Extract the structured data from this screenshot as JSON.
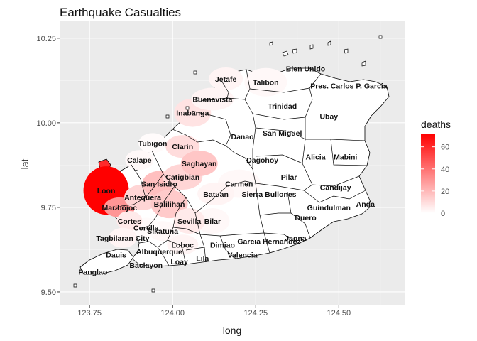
{
  "title": "Earthquake Casualties",
  "axes": {
    "xlabel": "long",
    "ylabel": "lat",
    "xlim": [
      123.66,
      124.7
    ],
    "ylim": [
      9.46,
      10.3
    ],
    "xticks": [
      {
        "v": 123.75,
        "label": "123.75"
      },
      {
        "v": 124.0,
        "label": "124.00"
      },
      {
        "v": 124.25,
        "label": "124.25"
      },
      {
        "v": 124.5,
        "label": "124.50"
      }
    ],
    "yticks": [
      {
        "v": 9.5,
        "label": "9.50"
      },
      {
        "v": 9.75,
        "label": "9.75"
      },
      {
        "v": 10.0,
        "label": "10.00"
      },
      {
        "v": 10.25,
        "label": "10.25"
      }
    ]
  },
  "legend": {
    "title": "deaths",
    "range": [
      0,
      72
    ],
    "ticks": [
      {
        "v": 0,
        "label": "0"
      },
      {
        "v": 20,
        "label": "20"
      },
      {
        "v": 40,
        "label": "40"
      },
      {
        "v": 60,
        "label": "60"
      }
    ],
    "low_color": "#ffffff",
    "high_color": "#ff0000"
  },
  "colors": {
    "panel": "#ebebeb",
    "grid_major": "#ffffff",
    "grid_minor": "#f5f5f5",
    "border": "#000000"
  },
  "chart_data": {
    "type": "choropleth",
    "variable": "deaths",
    "regions": [
      {
        "name": "Loon",
        "deaths": 72,
        "lon": 123.8,
        "lat": 9.8
      },
      {
        "name": "Maribojoc",
        "deaths": 30,
        "lon": 123.84,
        "lat": 9.75
      },
      {
        "name": "Calape",
        "deaths": 2,
        "lon": 123.9,
        "lat": 9.89
      },
      {
        "name": "Antequera",
        "deaths": 12,
        "lon": 123.91,
        "lat": 9.78
      },
      {
        "name": "San Isidro",
        "deaths": 18,
        "lon": 123.96,
        "lat": 9.82
      },
      {
        "name": "Catigbian",
        "deaths": 12,
        "lon": 124.03,
        "lat": 9.84
      },
      {
        "name": "Balilihan",
        "deaths": 15,
        "lon": 123.99,
        "lat": 9.76
      },
      {
        "name": "Tubigon",
        "deaths": 1,
        "lon": 123.94,
        "lat": 9.94
      },
      {
        "name": "Clarin",
        "deaths": 10,
        "lon": 124.03,
        "lat": 9.93
      },
      {
        "name": "Sagbayan",
        "deaths": 16,
        "lon": 124.08,
        "lat": 9.88
      },
      {
        "name": "Inabanga",
        "deaths": 8,
        "lon": 124.06,
        "lat": 10.03
      },
      {
        "name": "Buenavista",
        "deaths": 3,
        "lon": 124.12,
        "lat": 10.07
      },
      {
        "name": "Jetafe",
        "deaths": 3,
        "lon": 124.16,
        "lat": 10.13
      },
      {
        "name": "Talibon",
        "deaths": 2,
        "lon": 124.28,
        "lat": 10.12
      },
      {
        "name": "Bien Unido",
        "deaths": 0,
        "lon": 124.4,
        "lat": 10.16
      },
      {
        "name": "Trinidad",
        "deaths": 0,
        "lon": 124.33,
        "lat": 10.05
      },
      {
        "name": "Ubay",
        "deaths": 0,
        "lon": 124.47,
        "lat": 10.02
      },
      {
        "name": "Pres. Carlos P. Garcia",
        "deaths": 0,
        "lon": 124.53,
        "lat": 10.11
      },
      {
        "name": "Danao",
        "deaths": 0,
        "lon": 124.21,
        "lat": 9.96
      },
      {
        "name": "San Miguel",
        "deaths": 0,
        "lon": 124.33,
        "lat": 9.97
      },
      {
        "name": "Dagohoy",
        "deaths": 0,
        "lon": 124.27,
        "lat": 9.89
      },
      {
        "name": "Carmen",
        "deaths": 2,
        "lon": 124.2,
        "lat": 9.82
      },
      {
        "name": "Pilar",
        "deaths": 0,
        "lon": 124.35,
        "lat": 9.84
      },
      {
        "name": "Alicia",
        "deaths": 0,
        "lon": 124.43,
        "lat": 9.9
      },
      {
        "name": "Mabini",
        "deaths": 0,
        "lon": 124.52,
        "lat": 9.9
      },
      {
        "name": "Candijay",
        "deaths": 0,
        "lon": 124.49,
        "lat": 9.81
      },
      {
        "name": "Anda",
        "deaths": 0,
        "lon": 124.58,
        "lat": 9.76
      },
      {
        "name": "Guindulman",
        "deaths": 0,
        "lon": 124.47,
        "lat": 9.75
      },
      {
        "name": "Duero",
        "deaths": 0,
        "lon": 124.4,
        "lat": 9.72
      },
      {
        "name": "Jagna",
        "deaths": 0,
        "lon": 124.37,
        "lat": 9.66
      },
      {
        "name": "Sierra Bullones",
        "deaths": 0,
        "lon": 124.29,
        "lat": 9.79
      },
      {
        "name": "Batuan",
        "deaths": 3,
        "lon": 124.13,
        "lat": 9.79
      },
      {
        "name": "Bilar",
        "deaths": 2,
        "lon": 124.12,
        "lat": 9.71
      },
      {
        "name": "Sevilla",
        "deaths": 6,
        "lon": 124.05,
        "lat": 9.71
      },
      {
        "name": "Garcia Hernandez",
        "deaths": 0,
        "lon": 124.29,
        "lat": 9.65
      },
      {
        "name": "Dimiao",
        "deaths": 0,
        "lon": 124.15,
        "lat": 9.64
      },
      {
        "name": "Valencia",
        "deaths": 0,
        "lon": 124.21,
        "lat": 9.61
      },
      {
        "name": "Lila",
        "deaths": 0,
        "lon": 124.09,
        "lat": 9.6
      },
      {
        "name": "Loboc",
        "deaths": 3,
        "lon": 124.03,
        "lat": 9.64
      },
      {
        "name": "Loay",
        "deaths": 0,
        "lon": 124.02,
        "lat": 9.59
      },
      {
        "name": "Sikatuna",
        "deaths": 2,
        "lon": 123.97,
        "lat": 9.68
      },
      {
        "name": "Albuquerque",
        "deaths": 0,
        "lon": 123.96,
        "lat": 9.62
      },
      {
        "name": "Baclayon",
        "deaths": 0,
        "lon": 123.92,
        "lat": 9.58
      },
      {
        "name": "Corella",
        "deaths": 1,
        "lon": 123.92,
        "lat": 9.69
      },
      {
        "name": "Cortes",
        "deaths": 6,
        "lon": 123.87,
        "lat": 9.71
      },
      {
        "name": "Tagbilaran City",
        "deaths": 3,
        "lon": 123.85,
        "lat": 9.66
      },
      {
        "name": "Dauis",
        "deaths": 0,
        "lon": 123.83,
        "lat": 9.61
      },
      {
        "name": "Panglao",
        "deaths": 0,
        "lon": 123.76,
        "lat": 9.56
      }
    ]
  }
}
